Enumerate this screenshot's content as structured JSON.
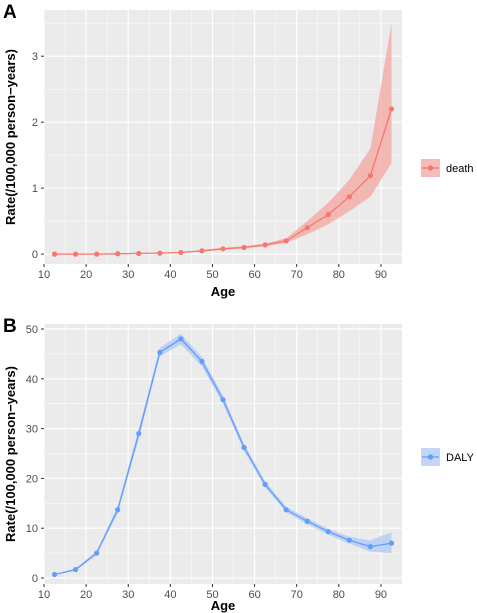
{
  "panels": {
    "a": {
      "letter": "A"
    },
    "b": {
      "letter": "B"
    }
  },
  "chart_data": [
    {
      "type": "line",
      "panel": "A",
      "xlabel": "Age",
      "ylabel": "Rate(/100,000 person−years)",
      "xlim": [
        10,
        95
      ],
      "ylim": [
        -0.15,
        3.7
      ],
      "xticks": [
        10,
        20,
        30,
        40,
        50,
        60,
        70,
        80,
        90
      ],
      "yticks": [
        0,
        1,
        2,
        3
      ],
      "grid": true,
      "legend_position": "right",
      "series": [
        {
          "name": "death",
          "color": "#f8766d",
          "band_color": "#f4a6a0",
          "x": [
            12.5,
            17.5,
            22.5,
            27.5,
            32.5,
            37.5,
            42.5,
            47.5,
            52.5,
            57.5,
            62.5,
            67.5,
            72.5,
            77.5,
            82.5,
            87.5,
            92.5
          ],
          "y": [
            0.0,
            0.0,
            0.0,
            0.005,
            0.01,
            0.015,
            0.025,
            0.05,
            0.08,
            0.1,
            0.14,
            0.2,
            0.4,
            0.6,
            0.87,
            1.19,
            2.2
          ],
          "lower": [
            0.0,
            0.0,
            0.0,
            0.003,
            0.007,
            0.01,
            0.02,
            0.04,
            0.065,
            0.085,
            0.12,
            0.17,
            0.3,
            0.45,
            0.65,
            0.87,
            1.38
          ],
          "upper": [
            0.0,
            0.0,
            0.0,
            0.008,
            0.015,
            0.02,
            0.03,
            0.06,
            0.095,
            0.12,
            0.16,
            0.24,
            0.5,
            0.78,
            1.13,
            1.6,
            3.5
          ]
        }
      ]
    },
    {
      "type": "line",
      "panel": "B",
      "xlabel": "Age",
      "ylabel": "Rate(/100,000 person−years)",
      "xlim": [
        10,
        95
      ],
      "ylim": [
        -1.2,
        51
      ],
      "xticks": [
        10,
        20,
        30,
        40,
        50,
        60,
        70,
        80,
        90
      ],
      "yticks": [
        0,
        10,
        20,
        30,
        40,
        50
      ],
      "grid": true,
      "legend_position": "right",
      "series": [
        {
          "name": "DALY",
          "color": "#619cff",
          "band_color": "#adc8f5",
          "x": [
            12.5,
            17.5,
            22.5,
            27.5,
            32.5,
            37.5,
            42.5,
            47.5,
            52.5,
            57.5,
            62.5,
            67.5,
            72.5,
            77.5,
            82.5,
            87.5,
            92.5
          ],
          "y": [
            0.7,
            1.7,
            5.0,
            13.7,
            29.0,
            45.3,
            48.0,
            43.5,
            35.8,
            26.2,
            18.8,
            13.7,
            11.4,
            9.3,
            7.6,
            6.3,
            7.0
          ],
          "lower": [
            0.6,
            1.5,
            4.6,
            13.0,
            28.0,
            44.5,
            46.9,
            42.5,
            35.0,
            25.5,
            18.2,
            13.2,
            10.8,
            8.7,
            6.9,
            5.3,
            5.0
          ],
          "upper": [
            0.8,
            1.9,
            5.4,
            14.4,
            30.0,
            46.2,
            49.0,
            44.4,
            36.6,
            26.9,
            19.4,
            14.3,
            12.0,
            9.9,
            8.3,
            7.6,
            9.2
          ]
        }
      ]
    }
  ]
}
